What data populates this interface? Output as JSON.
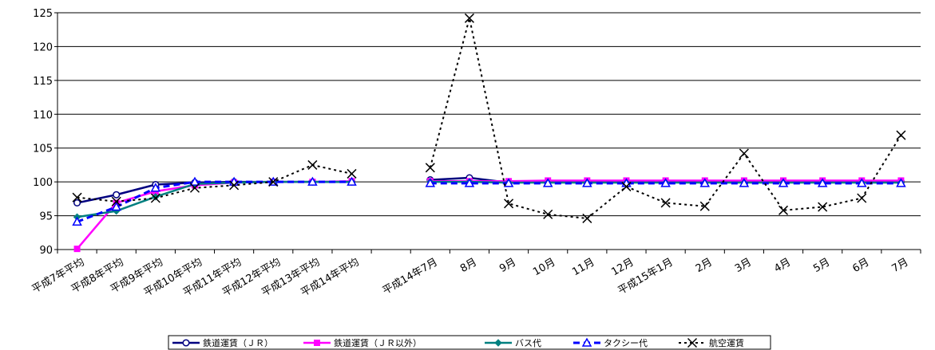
{
  "chart_data": {
    "type": "line",
    "categories": [
      "平成7年平均",
      "平成8年平均",
      "平成9年平均",
      "平成10年平均",
      "平成11年平均",
      "平成12年平均",
      "平成13年平均",
      "平成14年平均",
      "",
      "平成14年7月",
      "8月",
      "9月",
      "10月",
      "11月",
      "12月",
      "平成15年1月",
      "2月",
      "3月",
      "4月",
      "5月",
      "6月",
      "7月"
    ],
    "ylim": [
      90,
      125
    ],
    "yticks": [
      90,
      95,
      100,
      105,
      110,
      115,
      120,
      125
    ],
    "grid": true,
    "legend_position": "bottom",
    "series": [
      {
        "name": "鉄道運賃（ＪＲ）",
        "color": "#000080",
        "style": "solid",
        "marker": "circle",
        "values": [
          96.9,
          98.1,
          99.6,
          99.9,
          100.0,
          100.0,
          100.0,
          100.0,
          null,
          100.3,
          100.6,
          99.9,
          100.0,
          99.9,
          100.0,
          100.1,
          100.0,
          100.1,
          100.0,
          100.0,
          100.0,
          100.0
        ]
      },
      {
        "name": "鉄道運賃（ＪＲ以外）",
        "color": "#ff00ff",
        "style": "solid",
        "marker": "square",
        "values": [
          90.1,
          96.9,
          98.6,
          99.5,
          99.9,
          100.0,
          100.0,
          100.1,
          null,
          100.1,
          100.1,
          100.1,
          100.2,
          100.2,
          100.2,
          100.2,
          100.2,
          100.2,
          100.2,
          100.2,
          100.2,
          100.2
        ]
      },
      {
        "name": "バス代",
        "color": "#008080",
        "style": "solid",
        "marker": "diamond",
        "values": [
          94.8,
          95.7,
          97.8,
          99.7,
          99.9,
          100.0,
          100.0,
          100.0,
          null,
          100.0,
          100.0,
          99.9,
          99.9,
          99.9,
          99.9,
          99.9,
          99.9,
          99.9,
          99.9,
          99.9,
          99.9,
          99.9
        ]
      },
      {
        "name": "タクシー代",
        "color": "#0000ff",
        "style": "dashed",
        "marker": "triangle",
        "values": [
          94.1,
          96.3,
          99.1,
          100.0,
          100.0,
          100.0,
          100.0,
          100.0,
          null,
          99.8,
          99.8,
          99.8,
          99.8,
          99.8,
          99.8,
          99.8,
          99.8,
          99.8,
          99.8,
          99.8,
          99.8,
          99.8
        ]
      },
      {
        "name": "航空運賃",
        "color": "#000000",
        "style": "dotted",
        "marker": "x",
        "values": [
          97.7,
          97.1,
          97.6,
          99.1,
          99.5,
          100.0,
          102.5,
          101.2,
          null,
          102.1,
          124.2,
          96.8,
          95.2,
          94.6,
          99.3,
          96.9,
          96.4,
          104.2,
          95.8,
          96.3,
          97.6,
          106.9
        ]
      }
    ]
  }
}
